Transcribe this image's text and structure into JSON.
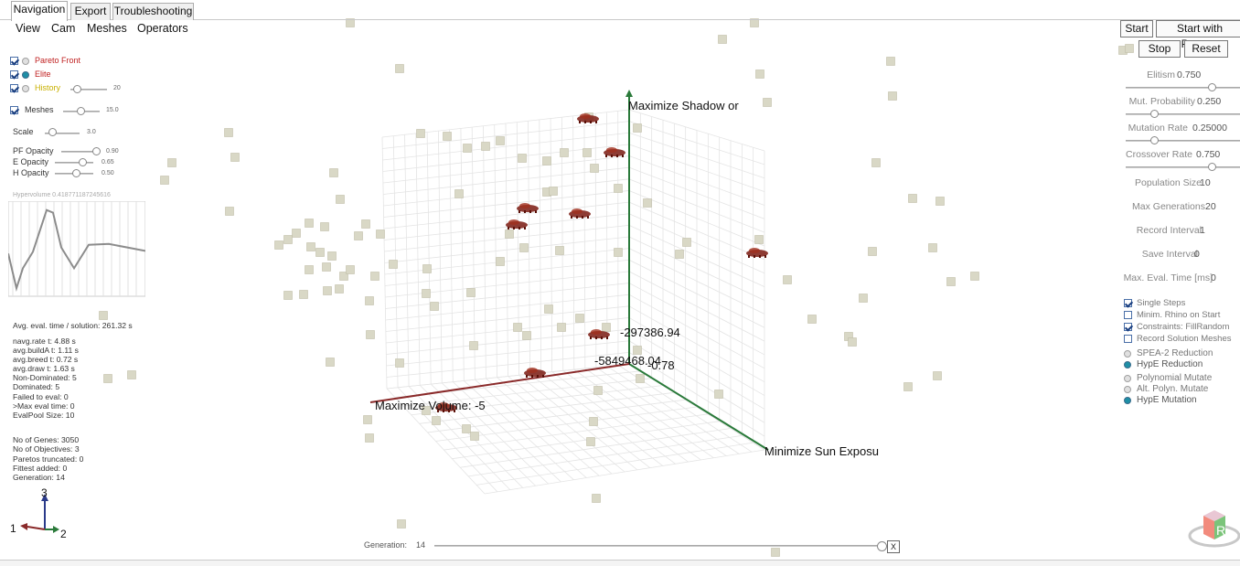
{
  "tabs": [
    {
      "label": "Navigation",
      "active": true
    },
    {
      "label": "Export",
      "active": false
    },
    {
      "label": "Troubleshooting",
      "active": false
    }
  ],
  "menu": [
    "View",
    "Cam",
    "Meshes",
    "Operators"
  ],
  "layers": {
    "pareto_label": "Pareto Front",
    "elite_label": "Elite",
    "history_label": "History",
    "history_value": "20",
    "meshes_label": "Meshes",
    "meshes_value": "15.0",
    "scale_label": "Scale",
    "scale_value": "3.0",
    "pf_opacity_label": "PF Opacity",
    "pf_opacity_value": "0.90",
    "e_opacity_label": "E Opacity",
    "e_opacity_value": "0.65",
    "h_opacity_label": "H Opacity",
    "h_opacity_value": "0.50",
    "colors": {
      "pareto": "#c02020",
      "elite": "#c02020",
      "history": "#c8b000"
    }
  },
  "hypervolume": {
    "label": "Hypervolume 0.418771187245616",
    "series": [
      0.45,
      0.05,
      0.28,
      0.47,
      0.95,
      0.92,
      0.52,
      0.28,
      0.55,
      0.56,
      0.48
    ]
  },
  "stats": [
    "Avg. eval. time / solution: 261.32 s",
    "navg.rate t: 4.88 s",
    "avg.buildA t: 1.11 s",
    "avg.breed t: 0.72 s",
    "avg.draw t: 1.63 s",
    "Non-Dominated: 5",
    "Dominated: 5",
    "Failed to eval: 0",
    ">Max eval time: 0",
    "EvalPool Size: 10",
    "",
    "No of Genes: 3050",
    "No of Objectives: 3",
    "Paretos truncated: 0",
    "Fittest added: 0",
    "Generation: 14"
  ],
  "gizmo": {
    "axis1": "1",
    "axis2": "2",
    "axis3": "3"
  },
  "axes": {
    "z_label": "Maximize Shadow or",
    "y_label": "Minimize Sun Exposu",
    "x_label": "Maximize Volume: -5",
    "value1": "-297386.94",
    "value2": "-5849468.04",
    "value3": "-0.78"
  },
  "controls": {
    "start": "Start",
    "start_presets": "Start with Presets",
    "stop": "Stop",
    "reset": "Reset",
    "elitism_label": "Elitism",
    "elitism_value": "0.750",
    "elitism_level": 0.75,
    "mut_prob_label": "Mut. Probability",
    "mut_prob_value": "0.250",
    "mut_prob_level": 0.25,
    "mut_rate_label": "Mutation Rate",
    "mut_rate_value": "0.25000",
    "mut_rate_level": 0.25,
    "crossover_label": "Crossover Rate",
    "crossover_value": "0.750",
    "crossover_level": 0.75,
    "pop_size_label": "Population Size",
    "pop_size_value": "10",
    "max_gen_label": "Max Generations",
    "max_gen_value": "20",
    "record_int_label": "Record Interval",
    "record_int_value": "1",
    "save_int_label": "Save Interval",
    "save_int_value": "0",
    "max_eval_label": "Max. Eval. Time [ms]",
    "max_eval_value": "0",
    "single_steps": "Single Steps",
    "minim_rhino": "Minim. Rhino on Start",
    "constraints": "Constraints: FillRandom",
    "record_meshes": "Record Solution Meshes",
    "spea2": "SPEA-2 Reduction",
    "hype_red": "HypE Reduction",
    "poly_mut": "Polynomial Mutate",
    "alt_poly": "Alt. Polyn. Mutate",
    "hype_mut": "HypE Mutation"
  },
  "generation_bar": {
    "label": "Generation:",
    "value": "14",
    "close": "X",
    "level": 1.0
  },
  "logo": {
    "letter": "R"
  },
  "scene_colors": {
    "cube": "#d9d8c6",
    "red_axis": "#8a2a2a",
    "green_axis": "#2a7a3a",
    "mesh": "#7a1a10"
  }
}
